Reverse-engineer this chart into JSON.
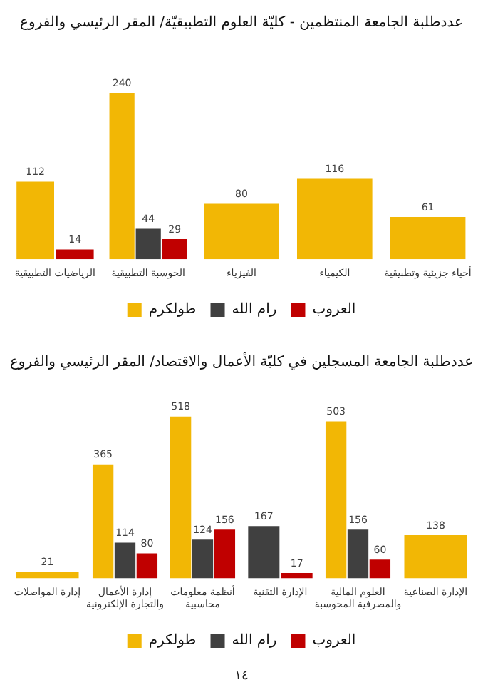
{
  "chart_data": [
    {
      "type": "bar",
      "title": "عددطلبة الجامعة المنتظمين - كليّة العلوم التطبيقيّة/ المقر الرئيسي والفروع",
      "categories": [
        "الرياضيات التطبيقية",
        "الحوسبة التطبيقية",
        "الفيزياء",
        "الكيمياء",
        "أحياء جزيئية وتطبيقية"
      ],
      "series": [
        {
          "name": "طولكرم",
          "color": "#f2b705",
          "values": [
            112,
            240,
            80,
            116,
            61
          ]
        },
        {
          "name": "رام الله",
          "color": "#404040",
          "values": [
            null,
            44,
            null,
            null,
            null
          ]
        },
        {
          "name": "العروب",
          "color": "#c00000",
          "values": [
            14,
            29,
            null,
            null,
            null
          ]
        }
      ],
      "data_labels": true,
      "legend": "bottom",
      "grid": false,
      "tick_labels": "x"
    },
    {
      "type": "bar",
      "title": "عددطلبة الجامعة المسجلين في كليّة الأعمال والاقتصاد/ المقر الرئيسي والفروع",
      "categories": [
        "إدارة المواصلات",
        "إدارة الأعمال\nوالتجارة الإلكترونية",
        "أنظمة معلومات\nمحاسبية",
        "الإدارة التقنية",
        "العلوم المالية\nوالمصرفية المحوسبة",
        "الإدارة الصناعية"
      ],
      "series": [
        {
          "name": "طولكرم",
          "color": "#f2b705",
          "values": [
            21,
            365,
            518,
            null,
            503,
            138
          ]
        },
        {
          "name": "رام الله",
          "color": "#404040",
          "values": [
            null,
            114,
            124,
            167,
            156,
            null
          ]
        },
        {
          "name": "العروب",
          "color": "#c00000",
          "values": [
            null,
            80,
            156,
            17,
            60,
            null
          ]
        }
      ],
      "data_labels": true,
      "legend": "bottom",
      "grid": false,
      "tick_labels": "x",
      "annotations": [
        "١٤"
      ]
    }
  ]
}
